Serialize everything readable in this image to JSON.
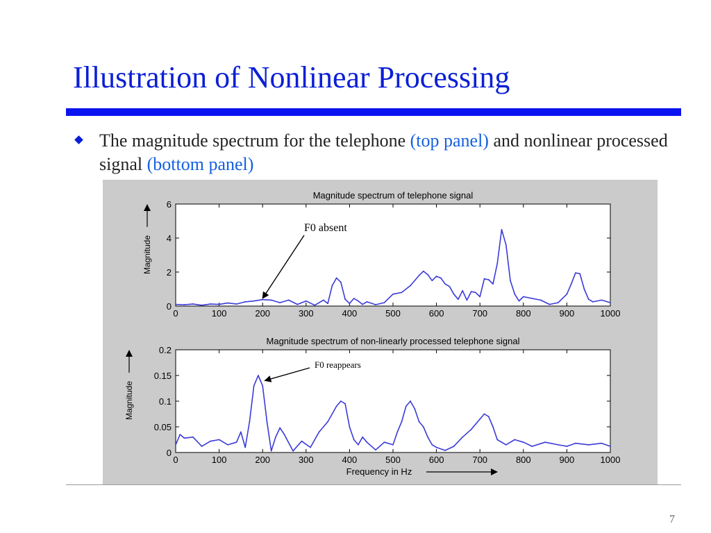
{
  "slide": {
    "title": "Illustration of Nonlinear Processing",
    "bullet": {
      "text_before": "The magnitude spectrum for the telephone ",
      "highlight_1": "(top panel)",
      "text_middle": " and nonlinear processed signal ",
      "highlight_2": "(bottom panel)"
    },
    "page_number": "7"
  },
  "colors": {
    "title": "#0a1fd6",
    "rule": "#0a14f0",
    "highlight": "#1460e0",
    "line": "#3a3ad8",
    "figure_background": "#cbcbcb"
  },
  "chart_data": [
    {
      "type": "line",
      "title": "Magnitude spectrum of telephone signal",
      "xlabel": "",
      "ylabel": "Magnitude",
      "xlim": [
        0,
        1000
      ],
      "ylim": [
        0,
        6
      ],
      "xticks": [
        0,
        100,
        200,
        300,
        400,
        500,
        600,
        700,
        800,
        900,
        1000
      ],
      "yticks": [
        0,
        2,
        4,
        6
      ],
      "ytick_labels": [
        "0",
        "2",
        "4",
        "6"
      ],
      "grid": false,
      "annotation": {
        "text": "F0 absent",
        "points_to": [
          200,
          0.45
        ]
      },
      "series": [
        {
          "x": [
            0,
            20,
            40,
            60,
            80,
            100,
            120,
            140,
            160,
            180,
            200,
            220,
            240,
            260,
            280,
            300,
            320,
            340,
            350,
            360,
            370,
            380,
            390,
            400,
            410,
            420,
            430,
            440,
            460,
            480,
            500,
            520,
            540,
            560,
            570,
            580,
            590,
            600,
            610,
            620,
            630,
            640,
            650,
            660,
            670,
            680,
            690,
            700,
            710,
            720,
            730,
            740,
            750,
            760,
            770,
            780,
            790,
            800,
            820,
            840,
            860,
            880,
            900,
            910,
            920,
            930,
            940,
            950,
            960,
            980,
            1000
          ],
          "y": [
            0.1,
            0.08,
            0.12,
            0.05,
            0.12,
            0.1,
            0.18,
            0.12,
            0.25,
            0.3,
            0.38,
            0.35,
            0.2,
            0.35,
            0.1,
            0.3,
            0.05,
            0.35,
            0.15,
            1.2,
            1.65,
            1.4,
            0.4,
            0.15,
            0.45,
            0.3,
            0.1,
            0.25,
            0.08,
            0.2,
            0.7,
            0.8,
            1.2,
            1.8,
            2.05,
            1.85,
            1.5,
            1.75,
            1.65,
            1.3,
            1.15,
            0.7,
            0.4,
            0.9,
            0.35,
            0.85,
            0.8,
            0.55,
            1.6,
            1.55,
            1.3,
            2.5,
            4.5,
            3.6,
            1.5,
            0.7,
            0.3,
            0.55,
            0.45,
            0.35,
            0.1,
            0.2,
            0.7,
            1.3,
            1.95,
            1.9,
            1.0,
            0.4,
            0.25,
            0.35,
            0.2
          ]
        }
      ]
    },
    {
      "type": "line",
      "title": "Magnitude spectrum of non-linearly processed telephone signal",
      "xlabel": "Frequency in Hz",
      "ylabel": "Magnitude",
      "xlim": [
        0,
        1000
      ],
      "ylim": [
        0,
        0.2
      ],
      "xticks": [
        0,
        100,
        200,
        300,
        400,
        500,
        600,
        700,
        800,
        900,
        1000
      ],
      "yticks": [
        0,
        0.05,
        0.1,
        0.15,
        0.2
      ],
      "ytick_labels": [
        "0",
        "0.05",
        "0.1",
        "0.15",
        "0.2"
      ],
      "grid": false,
      "annotation": {
        "text": "F0 reappears",
        "points_to": [
          205,
          0.14
        ]
      },
      "series": [
        {
          "x": [
            0,
            10,
            20,
            40,
            60,
            80,
            100,
            120,
            140,
            150,
            160,
            170,
            180,
            190,
            200,
            210,
            220,
            230,
            240,
            250,
            270,
            290,
            310,
            330,
            350,
            370,
            380,
            390,
            400,
            410,
            420,
            430,
            440,
            460,
            480,
            500,
            510,
            520,
            530,
            540,
            550,
            560,
            570,
            580,
            590,
            600,
            620,
            640,
            660,
            680,
            700,
            710,
            720,
            730,
            740,
            750,
            760,
            780,
            800,
            820,
            850,
            880,
            900,
            920,
            950,
            980,
            1000
          ],
          "y": [
            0.015,
            0.035,
            0.028,
            0.03,
            0.012,
            0.022,
            0.025,
            0.015,
            0.02,
            0.04,
            0.01,
            0.06,
            0.13,
            0.15,
            0.13,
            0.06,
            0.003,
            0.03,
            0.048,
            0.035,
            0.003,
            0.022,
            0.01,
            0.04,
            0.06,
            0.09,
            0.1,
            0.095,
            0.05,
            0.025,
            0.015,
            0.03,
            0.02,
            0.005,
            0.02,
            0.015,
            0.04,
            0.06,
            0.09,
            0.1,
            0.085,
            0.06,
            0.05,
            0.03,
            0.015,
            0.01,
            0.004,
            0.012,
            0.03,
            0.045,
            0.065,
            0.075,
            0.07,
            0.05,
            0.025,
            0.02,
            0.015,
            0.025,
            0.02,
            0.012,
            0.02,
            0.015,
            0.012,
            0.018,
            0.015,
            0.018,
            0.012
          ]
        }
      ]
    }
  ]
}
